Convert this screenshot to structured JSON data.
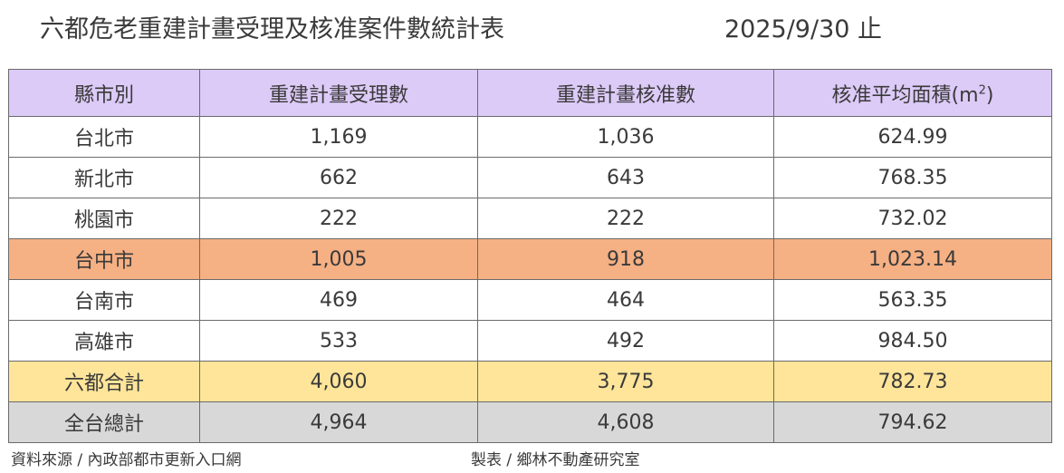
{
  "title": "六都危老重建計畫受理及核准案件數統計表",
  "date": "2025/9/30 止",
  "table": {
    "headers": {
      "city": "縣市別",
      "applications": "重建計畫受理數",
      "approvals": "重建計畫核准數",
      "avg_area_prefix": "核准平均面積(m",
      "avg_area_sup": "2",
      "avg_area_suffix": ")"
    },
    "rows": [
      {
        "city": "台北市",
        "applications": "1,169",
        "approvals": "1,036",
        "avg_area": "624.99"
      },
      {
        "city": "新北市",
        "applications": "662",
        "approvals": "643",
        "avg_area": "768.35"
      },
      {
        "city": "桃園市",
        "applications": "222",
        "approvals": "222",
        "avg_area": "732.02"
      },
      {
        "city": "台中市",
        "applications": "1,005",
        "approvals": "918",
        "avg_area": "1,023.14"
      },
      {
        "city": "台南市",
        "applications": "469",
        "approvals": "464",
        "avg_area": "563.35"
      },
      {
        "city": "高雄市",
        "applications": "533",
        "approvals": "492",
        "avg_area": "984.50"
      },
      {
        "city": "六都合計",
        "applications": "4,060",
        "approvals": "3,775",
        "avg_area": "782.73"
      },
      {
        "city": "全台總計",
        "applications": "4,964",
        "approvals": "4,608",
        "avg_area": "794.62"
      }
    ]
  },
  "colors": {
    "header_bg": "#dccaf7",
    "highlight_taichung": "#f5b084",
    "six_city_total": "#fee59a",
    "national_total": "#d8d8d8"
  },
  "footer": {
    "source": "資料來源 / 內政部都市更新入口網",
    "maker": "製表 / 鄉林不動產研究室"
  }
}
